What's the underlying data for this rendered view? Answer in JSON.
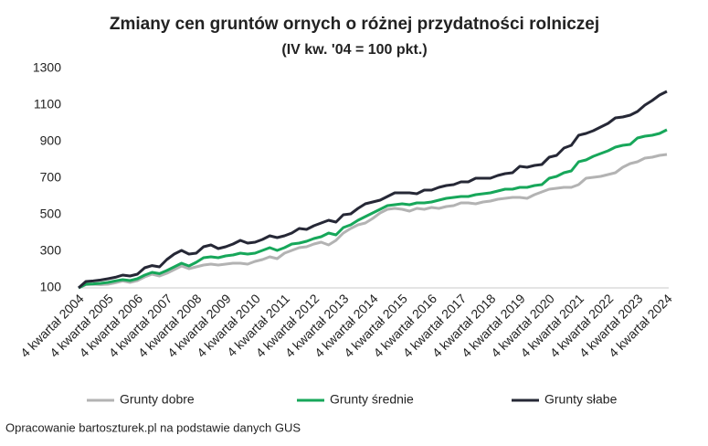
{
  "chart_data": {
    "type": "line",
    "title": "Zmiany cen gruntów ornych o różnej przydatności rolniczej",
    "subtitle": "(IV kw. '04 = 100 pkt.)",
    "source": "Opracowanie bartoszturek.pl na podstawie danych GUS",
    "categories": [
      "4 kwartał 2004",
      null,
      null,
      null,
      "4 kwartał 2005",
      null,
      null,
      null,
      "4 kwartał 2006",
      null,
      null,
      null,
      "4 kwartał 2007",
      null,
      null,
      null,
      "4 kwartał 2008",
      null,
      null,
      null,
      "4 kwartał 2009",
      null,
      null,
      null,
      "4 kwartał 2010",
      null,
      null,
      null,
      "4 kwartał 2011",
      null,
      null,
      null,
      "4 kwartał 2012",
      null,
      null,
      null,
      "4 kwartał 2013",
      null,
      null,
      null,
      "4 kwartał 2014",
      null,
      null,
      null,
      "4 kwartał 2015",
      null,
      null,
      null,
      "4 kwartał 2016",
      null,
      null,
      null,
      "4 kwartał 2017",
      null,
      null,
      null,
      "4 kwartał 2018",
      null,
      null,
      null,
      "4 kwartał 2019",
      null,
      null,
      null,
      "4 kwartał 2020",
      null,
      null,
      null,
      "4 kwartał 2021",
      null,
      null,
      null,
      "4 kwartał 2022",
      null,
      null,
      null,
      "4 kwartał 2023",
      null,
      null,
      null,
      "4 kwartał 2024"
    ],
    "series": [
      {
        "name": "Grunty dobre",
        "color": "#b3b3b3",
        "values": [
          100,
          118,
          120,
          118,
          120,
          128,
          138,
          130,
          140,
          160,
          175,
          165,
          180,
          200,
          220,
          205,
          215,
          225,
          230,
          225,
          230,
          235,
          235,
          230,
          245,
          255,
          270,
          260,
          290,
          305,
          320,
          325,
          340,
          350,
          335,
          360,
          400,
          425,
          445,
          455,
          480,
          510,
          530,
          535,
          530,
          520,
          535,
          530,
          540,
          535,
          545,
          550,
          565,
          565,
          560,
          570,
          575,
          585,
          590,
          595,
          595,
          590,
          610,
          625,
          640,
          645,
          650,
          650,
          665,
          700,
          705,
          710,
          720,
          730,
          760,
          780,
          790,
          810,
          815,
          825,
          830
        ]
      },
      {
        "name": "Grunty średnie",
        "color": "#17a75a",
        "values": [
          100,
          120,
          122,
          125,
          130,
          138,
          145,
          140,
          150,
          170,
          185,
          178,
          195,
          215,
          235,
          220,
          240,
          265,
          270,
          265,
          275,
          280,
          290,
          285,
          290,
          305,
          320,
          305,
          320,
          340,
          345,
          355,
          370,
          380,
          400,
          390,
          430,
          445,
          470,
          490,
          510,
          530,
          550,
          555,
          560,
          555,
          565,
          565,
          570,
          580,
          590,
          595,
          600,
          600,
          610,
          615,
          620,
          630,
          640,
          640,
          650,
          650,
          660,
          665,
          700,
          710,
          730,
          740,
          790,
          800,
          820,
          835,
          850,
          870,
          880,
          885,
          920,
          930,
          935,
          945,
          965
        ]
      },
      {
        "name": "Grunty słabe",
        "color": "#262836",
        "values": [
          100,
          135,
          138,
          143,
          150,
          158,
          170,
          165,
          175,
          210,
          222,
          215,
          255,
          285,
          305,
          285,
          290,
          325,
          335,
          315,
          325,
          340,
          360,
          345,
          350,
          365,
          385,
          375,
          385,
          400,
          425,
          420,
          440,
          455,
          470,
          460,
          500,
          505,
          535,
          560,
          570,
          580,
          600,
          620,
          620,
          620,
          615,
          635,
          635,
          650,
          660,
          665,
          680,
          680,
          700,
          700,
          700,
          715,
          725,
          730,
          765,
          760,
          770,
          775,
          815,
          825,
          865,
          880,
          935,
          945,
          960,
          980,
          1000,
          1030,
          1035,
          1045,
          1065,
          1100,
          1125,
          1155,
          1175
        ]
      }
    ],
    "ylim": [
      100,
      1300
    ],
    "yticks": [
      100,
      300,
      500,
      700,
      900,
      1100,
      1300
    ],
    "grid": false,
    "legend": "bottom"
  }
}
